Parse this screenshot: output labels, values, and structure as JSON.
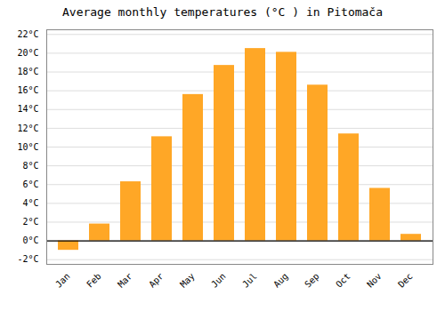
{
  "chart_data": {
    "type": "bar",
    "title": "Average monthly temperatures (°C ) in Pitomača",
    "categories": [
      "Jan",
      "Feb",
      "Mar",
      "Apr",
      "May",
      "Jun",
      "Jul",
      "Aug",
      "Sep",
      "Oct",
      "Nov",
      "Dec"
    ],
    "values": [
      -1.0,
      1.8,
      6.3,
      11.1,
      15.6,
      18.7,
      20.5,
      20.1,
      16.6,
      11.4,
      5.6,
      0.7
    ],
    "color": "#FFA726",
    "ylim": [
      -2.5,
      22.5
    ],
    "yticks": [
      {
        "value": -2,
        "label": "-2°C"
      },
      {
        "value": 0,
        "label": "0°C"
      },
      {
        "value": 2,
        "label": "2°C"
      },
      {
        "value": 4,
        "label": "4°C"
      },
      {
        "value": 6,
        "label": "6°C"
      },
      {
        "value": 8,
        "label": "8°C"
      },
      {
        "value": 10,
        "label": "10°C"
      },
      {
        "value": 12,
        "label": "12°C"
      },
      {
        "value": 14,
        "label": "14°C"
      },
      {
        "value": 16,
        "label": "16°C"
      },
      {
        "value": 18,
        "label": "18°C"
      },
      {
        "value": 20,
        "label": "20°C"
      },
      {
        "value": 22,
        "label": "22°C"
      }
    ],
    "grid": true
  }
}
